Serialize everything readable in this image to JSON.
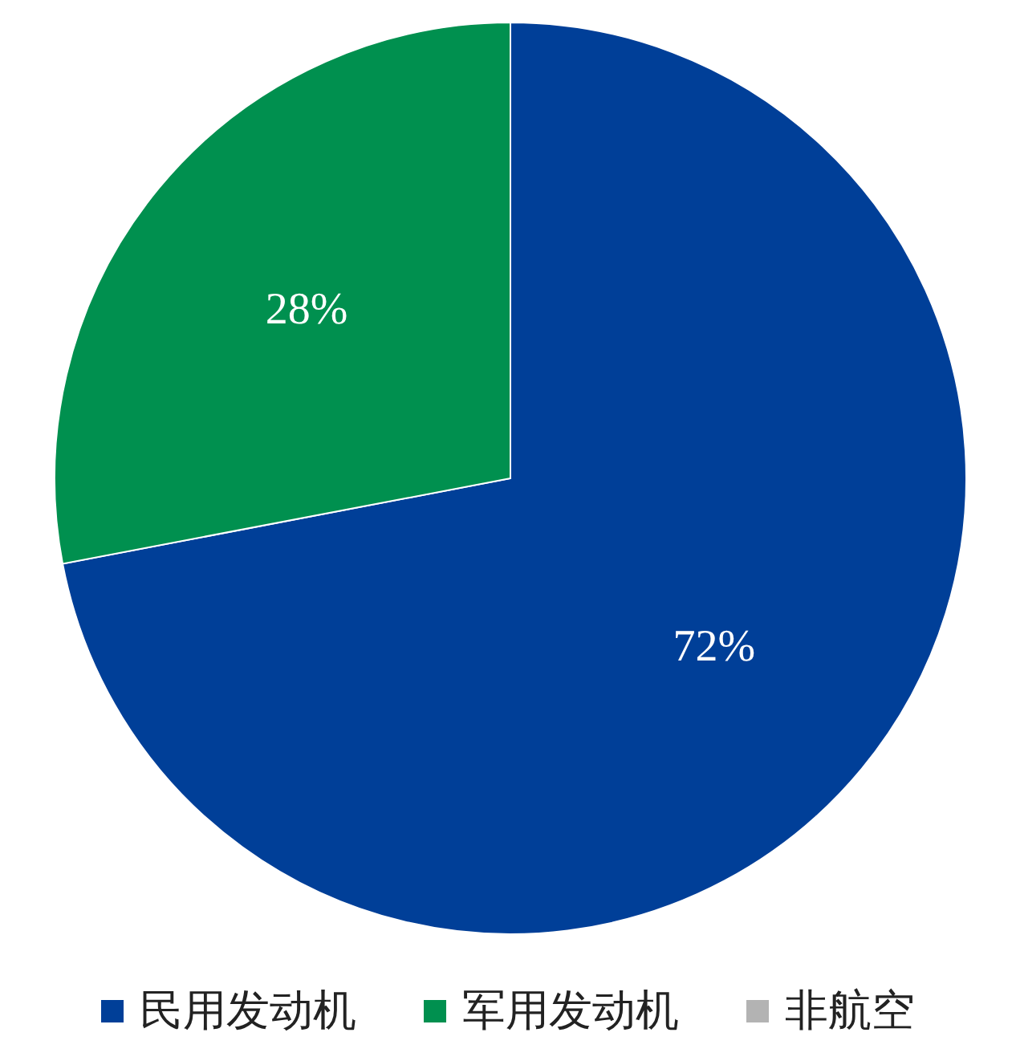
{
  "chart_data": {
    "type": "pie",
    "categories": [
      "民用发动机",
      "军用发动机",
      "非航空"
    ],
    "values": [
      72,
      28,
      0
    ],
    "colors": [
      "#003f98",
      "#00904f",
      "#b3b3b3"
    ],
    "value_labels": [
      "72%",
      "28%",
      null
    ],
    "legend": "bottom"
  }
}
